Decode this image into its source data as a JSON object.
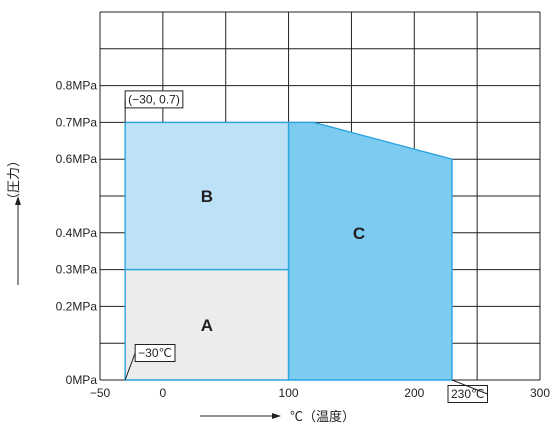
{
  "chart_data": {
    "type": "area",
    "title": "",
    "xlabel": "℃（温度）",
    "ylabel": "（圧力）",
    "xlim": [
      -50,
      300
    ],
    "ylim": [
      0,
      1.0
    ],
    "x_ticks": [
      {
        "value": -50,
        "label": "−50"
      },
      {
        "value": 0,
        "label": "0"
      },
      {
        "value": 100,
        "label": "100"
      },
      {
        "value": 200,
        "label": "200"
      },
      {
        "value": 300,
        "label": "300"
      }
    ],
    "y_ticks": [
      {
        "value": 0,
        "label": "0MPa"
      },
      {
        "value": 0.2,
        "label": "0.2MPa"
      },
      {
        "value": 0.3,
        "label": "0.3MPa"
      },
      {
        "value": 0.4,
        "label": "0.4MPa"
      },
      {
        "value": 0.6,
        "label": "0.6MPa"
      },
      {
        "value": 0.7,
        "label": "0.7MPa"
      },
      {
        "value": 0.8,
        "label": "0.8MPa"
      }
    ],
    "grid": true,
    "regions": [
      {
        "name": "A",
        "color": "#ececec",
        "points": [
          [
            -30,
            0
          ],
          [
            -30,
            0.3
          ],
          [
            100,
            0.3
          ],
          [
            100,
            0
          ]
        ]
      },
      {
        "name": "B",
        "color": "#bde2f8",
        "points": [
          [
            -30,
            0.3
          ],
          [
            -30,
            0.7
          ],
          [
            100,
            0.7
          ],
          [
            100,
            0.3
          ]
        ]
      },
      {
        "name": "C",
        "color": "#7dcbf1",
        "points": [
          [
            100,
            0
          ],
          [
            100,
            0.7
          ],
          [
            120,
            0.7
          ],
          [
            230,
            0.6
          ],
          [
            230,
            0
          ]
        ]
      }
    ],
    "region_line_color": "#2ba4e0",
    "annotations": [
      {
        "text": "(−30, 0.7)",
        "x": -30,
        "y": 0.7
      },
      {
        "text": "−30℃",
        "x": -30,
        "y": 0
      },
      {
        "text": "230℃",
        "x": 230,
        "y": 0
      }
    ]
  }
}
